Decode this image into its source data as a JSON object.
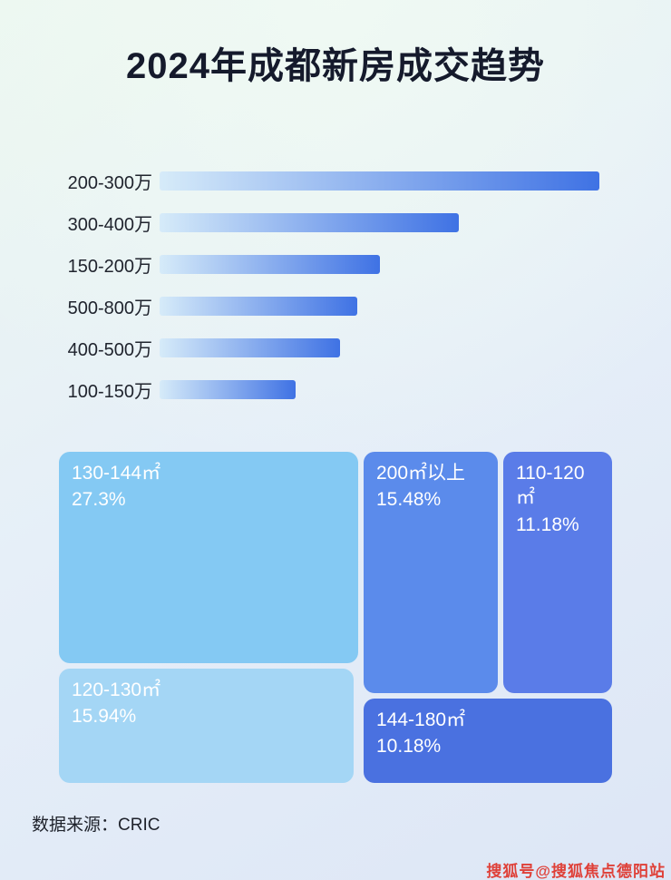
{
  "title": "2024年成都新房成交趋势",
  "chart_data": [
    {
      "type": "bar",
      "orientation": "horizontal",
      "title": "价格段成交趋势（条形长度为相对值，图中未标注数值）",
      "categories": [
        "200-300万",
        "300-400万",
        "150-200万",
        "500-800万",
        "400-500万",
        "100-150万"
      ],
      "values": [
        100,
        68,
        50,
        45,
        41,
        31
      ],
      "unit": "relative_length_percent",
      "bar_gradient": [
        "#d6ebf9",
        "#3f72e4"
      ],
      "legend": "none",
      "grid": false
    },
    {
      "type": "treemap",
      "title": "面积段成交占比",
      "items": [
        {
          "label": "130-144㎡",
          "value": 27.3,
          "display": "27.3%",
          "color": "#84c9f3"
        },
        {
          "label": "200㎡以上",
          "value": 15.48,
          "display": "15.48%",
          "color": "#5b8beb"
        },
        {
          "label": "110-120㎡",
          "value": 11.18,
          "display": "11.18%",
          "color": "#5a7ce8"
        },
        {
          "label": "120-130㎡",
          "value": 15.94,
          "display": "15.94%",
          "color": "#a4d6f5"
        },
        {
          "label": "144-180㎡",
          "value": 10.18,
          "display": "10.18%",
          "color": "#4a71e0"
        }
      ]
    }
  ],
  "footer": {
    "source": "数据来源：CRIC"
  },
  "watermark": "搜狐号@搜狐焦点德阳站"
}
